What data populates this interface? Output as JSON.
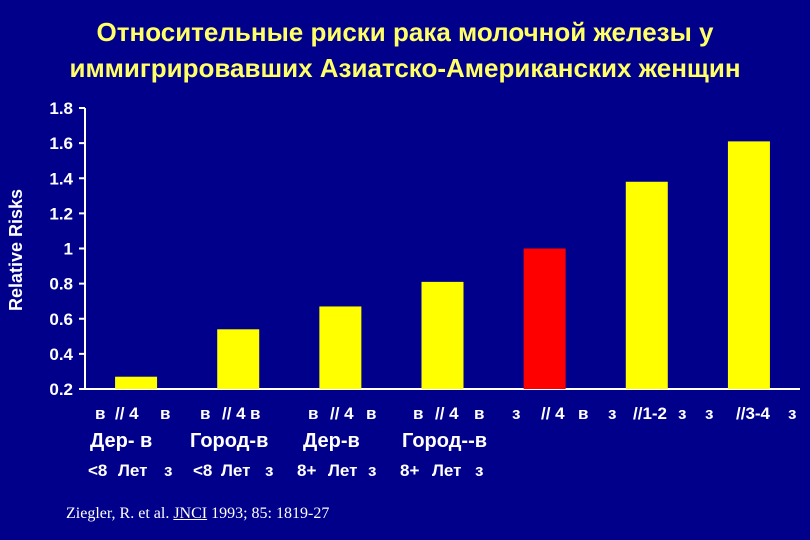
{
  "title_line1": "Относительные риски рака молочной железы у",
  "title_line2": "иммигрировавших Азиатско-Американских женщин",
  "source": {
    "authors": "Ziegler, R. et al.",
    "journal": "JNCI",
    "rest": "1993; 85: 1819-27"
  },
  "chart_data": {
    "type": "bar",
    "ylabel": "Relative Risks",
    "ylim": [
      0.2,
      1.8
    ],
    "yticks": [
      "0.2",
      "0.4",
      "0.6",
      "0.8",
      "1",
      "1.2",
      "1.4",
      "1.6",
      "1.8"
    ],
    "grid": false,
    "values": [
      0.27,
      0.54,
      0.67,
      0.81,
      1.0,
      1.38,
      1.61
    ],
    "colors": [
      "#FFFF00",
      "#FFFF00",
      "#FFFF00",
      "#FFFF00",
      "#FF0000",
      "#FFFF00",
      "#FFFF00"
    ],
    "label_rows": [
      [
        "в",
        "// 4",
        "в",
        "в",
        "// 4",
        "в",
        "в",
        "// 4",
        "в",
        "в",
        "// 4",
        "в",
        "з",
        "// 4",
        "в",
        "з",
        "//1-2",
        "з",
        "з",
        "//3-4",
        "з"
      ],
      [
        "Дер- в",
        "Город-в",
        "Дер-в",
        "Город--в"
      ],
      [
        "<8",
        "Лет",
        "з",
        "<8",
        "Лет",
        "з",
        "8+",
        "Лет",
        "з",
        "8+",
        "Лет",
        "з"
      ]
    ]
  }
}
